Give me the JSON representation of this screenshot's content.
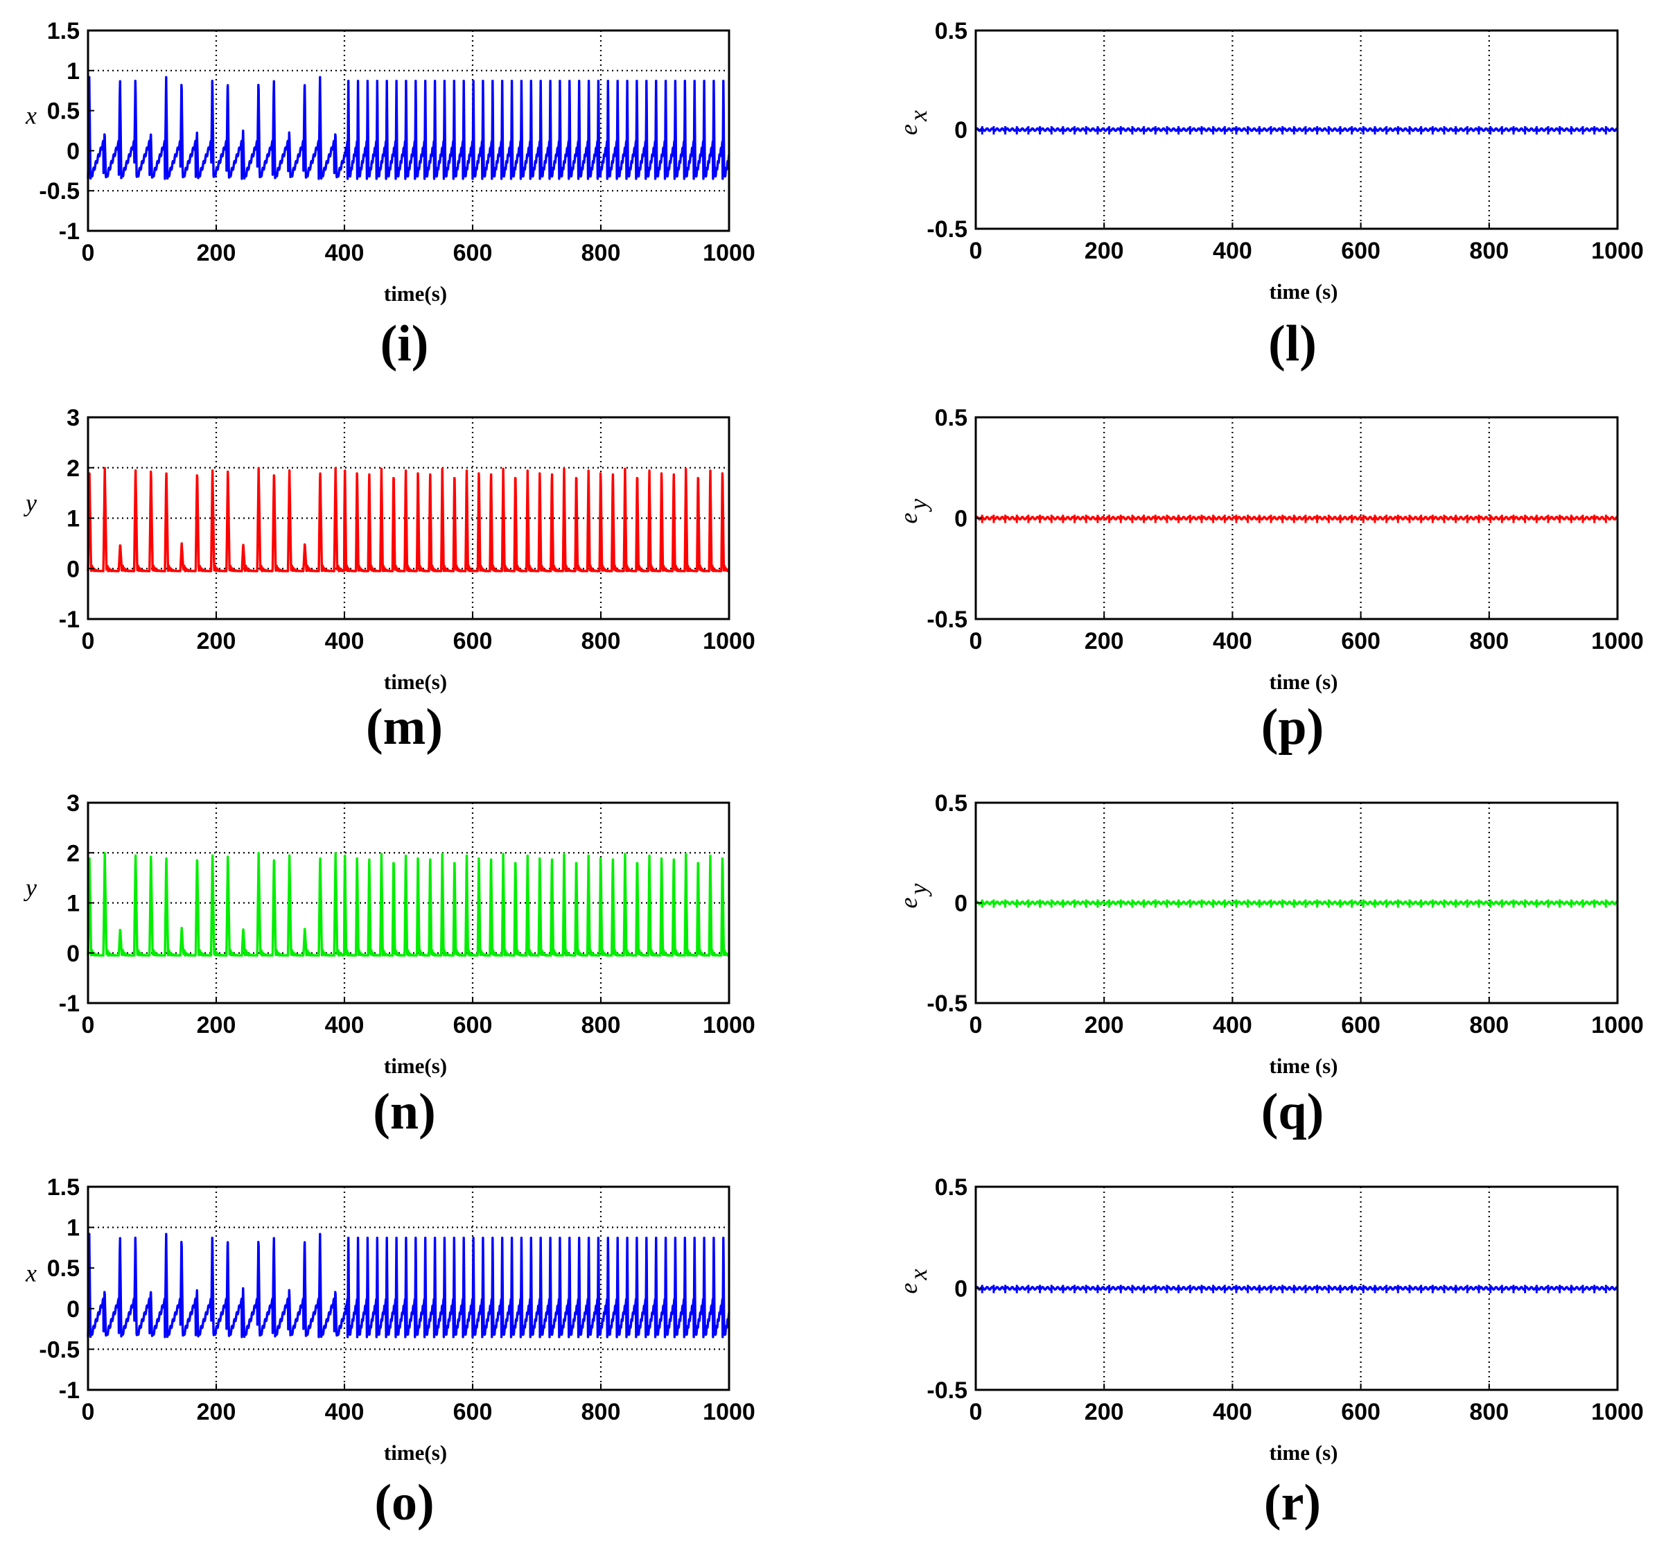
{
  "chart_data": [
    {
      "id": "i",
      "caption": "(i)",
      "type": "line",
      "xlabel": "time(s)",
      "ylabel": "x",
      "xlim": [
        0,
        1000
      ],
      "ylim": [
        -1,
        1.5
      ],
      "xticks": [
        "0",
        "200",
        "400",
        "600",
        "800",
        "1000"
      ],
      "yticks": [
        "-1",
        "-0.5",
        "0",
        "0.5",
        "1",
        "1.5"
      ],
      "gridy": [
        -0.5,
        1
      ],
      "series": [
        {
          "name": "x",
          "color": "#0000ff",
          "pattern": "x",
          "min": -0.35,
          "max": 0.92,
          "period_before_400": 24,
          "period_after_400": 15
        }
      ]
    },
    {
      "id": "l",
      "caption": "(l)",
      "type": "line",
      "xlabel": "time (s)",
      "ylabel": "e",
      "ylabel_sub": "x",
      "xlim": [
        0,
        1000
      ],
      "ylim": [
        -0.5,
        0.5
      ],
      "xticks": [
        "0",
        "200",
        "400",
        "600",
        "800",
        "1000"
      ],
      "yticks": [
        "-0.5",
        "0",
        "0.5"
      ],
      "gridy": [],
      "series": [
        {
          "name": "e_x",
          "color": "#0000ff",
          "pattern": "error",
          "value": 0
        }
      ]
    },
    {
      "id": "m",
      "caption": "(m)",
      "type": "line",
      "xlabel": "time(s)",
      "ylabel": "y",
      "xlim": [
        0,
        1000
      ],
      "ylim": [
        -1,
        3
      ],
      "xticks": [
        "0",
        "200",
        "400",
        "600",
        "800",
        "1000"
      ],
      "yticks": [
        "-1",
        "0",
        "1",
        "2",
        "3"
      ],
      "gridy": [
        0,
        1,
        2
      ],
      "series": [
        {
          "name": "y",
          "color": "#ff0000",
          "pattern": "y",
          "min": -0.05,
          "max": 2.0,
          "period_before_400": 24,
          "period_after_400": 19
        }
      ]
    },
    {
      "id": "p",
      "caption": "(p)",
      "type": "line",
      "xlabel": "time (s)",
      "ylabel": "e",
      "ylabel_sub": "y",
      "xlim": [
        0,
        1000
      ],
      "ylim": [
        -0.5,
        0.5
      ],
      "xticks": [
        "0",
        "200",
        "400",
        "600",
        "800",
        "1000"
      ],
      "yticks": [
        "-0.5",
        "0",
        "0.5"
      ],
      "gridy": [],
      "series": [
        {
          "name": "e_y",
          "color": "#ff0000",
          "pattern": "error",
          "value": 0
        }
      ]
    },
    {
      "id": "n",
      "caption": "(n)",
      "type": "line",
      "xlabel": "time(s)",
      "ylabel": "y",
      "xlim": [
        0,
        1000
      ],
      "ylim": [
        -1,
        3
      ],
      "xticks": [
        "0",
        "200",
        "400",
        "600",
        "800",
        "1000"
      ],
      "yticks": [
        "-1",
        "0",
        "1",
        "2",
        "3"
      ],
      "gridy": [
        0,
        1,
        2
      ],
      "series": [
        {
          "name": "y",
          "color": "#00ee00",
          "pattern": "y",
          "min": -0.05,
          "max": 2.0,
          "period_before_400": 24,
          "period_after_400": 19
        }
      ]
    },
    {
      "id": "q",
      "caption": "(q)",
      "type": "line",
      "xlabel": "time (s)",
      "ylabel": "e",
      "ylabel_sub": "y",
      "xlim": [
        0,
        1000
      ],
      "ylim": [
        -0.5,
        0.5
      ],
      "xticks": [
        "0",
        "200",
        "400",
        "600",
        "800",
        "1000"
      ],
      "yticks": [
        "-0.5",
        "0",
        "0.5"
      ],
      "gridy": [],
      "series": [
        {
          "name": "e_y",
          "color": "#00ee00",
          "pattern": "error",
          "value": 0
        }
      ]
    },
    {
      "id": "o",
      "caption": "(o)",
      "type": "line",
      "xlabel": "time(s)",
      "ylabel": "x",
      "xlim": [
        0,
        1000
      ],
      "ylim": [
        -1,
        1.5
      ],
      "xticks": [
        "0",
        "200",
        "400",
        "600",
        "800",
        "1000"
      ],
      "yticks": [
        "-1",
        "-0.5",
        "0",
        "0.5",
        "1",
        "1.5"
      ],
      "gridy": [
        -0.5,
        1
      ],
      "series": [
        {
          "name": "x",
          "color": "#0000ff",
          "pattern": "x",
          "min": -0.35,
          "max": 0.92,
          "period_before_400": 24,
          "period_after_400": 15
        }
      ]
    },
    {
      "id": "r",
      "caption": "(r)",
      "type": "line",
      "xlabel": "time (s)",
      "ylabel": "e",
      "ylabel_sub": "x",
      "xlim": [
        0,
        1000
      ],
      "ylim": [
        -0.5,
        0.5
      ],
      "xticks": [
        "0",
        "200",
        "400",
        "600",
        "800",
        "1000"
      ],
      "yticks": [
        "-0.5",
        "0",
        "0.5"
      ],
      "gridy": [],
      "series": [
        {
          "name": "e_x",
          "color": "#0000ff",
          "pattern": "error",
          "value": 0
        }
      ]
    }
  ]
}
